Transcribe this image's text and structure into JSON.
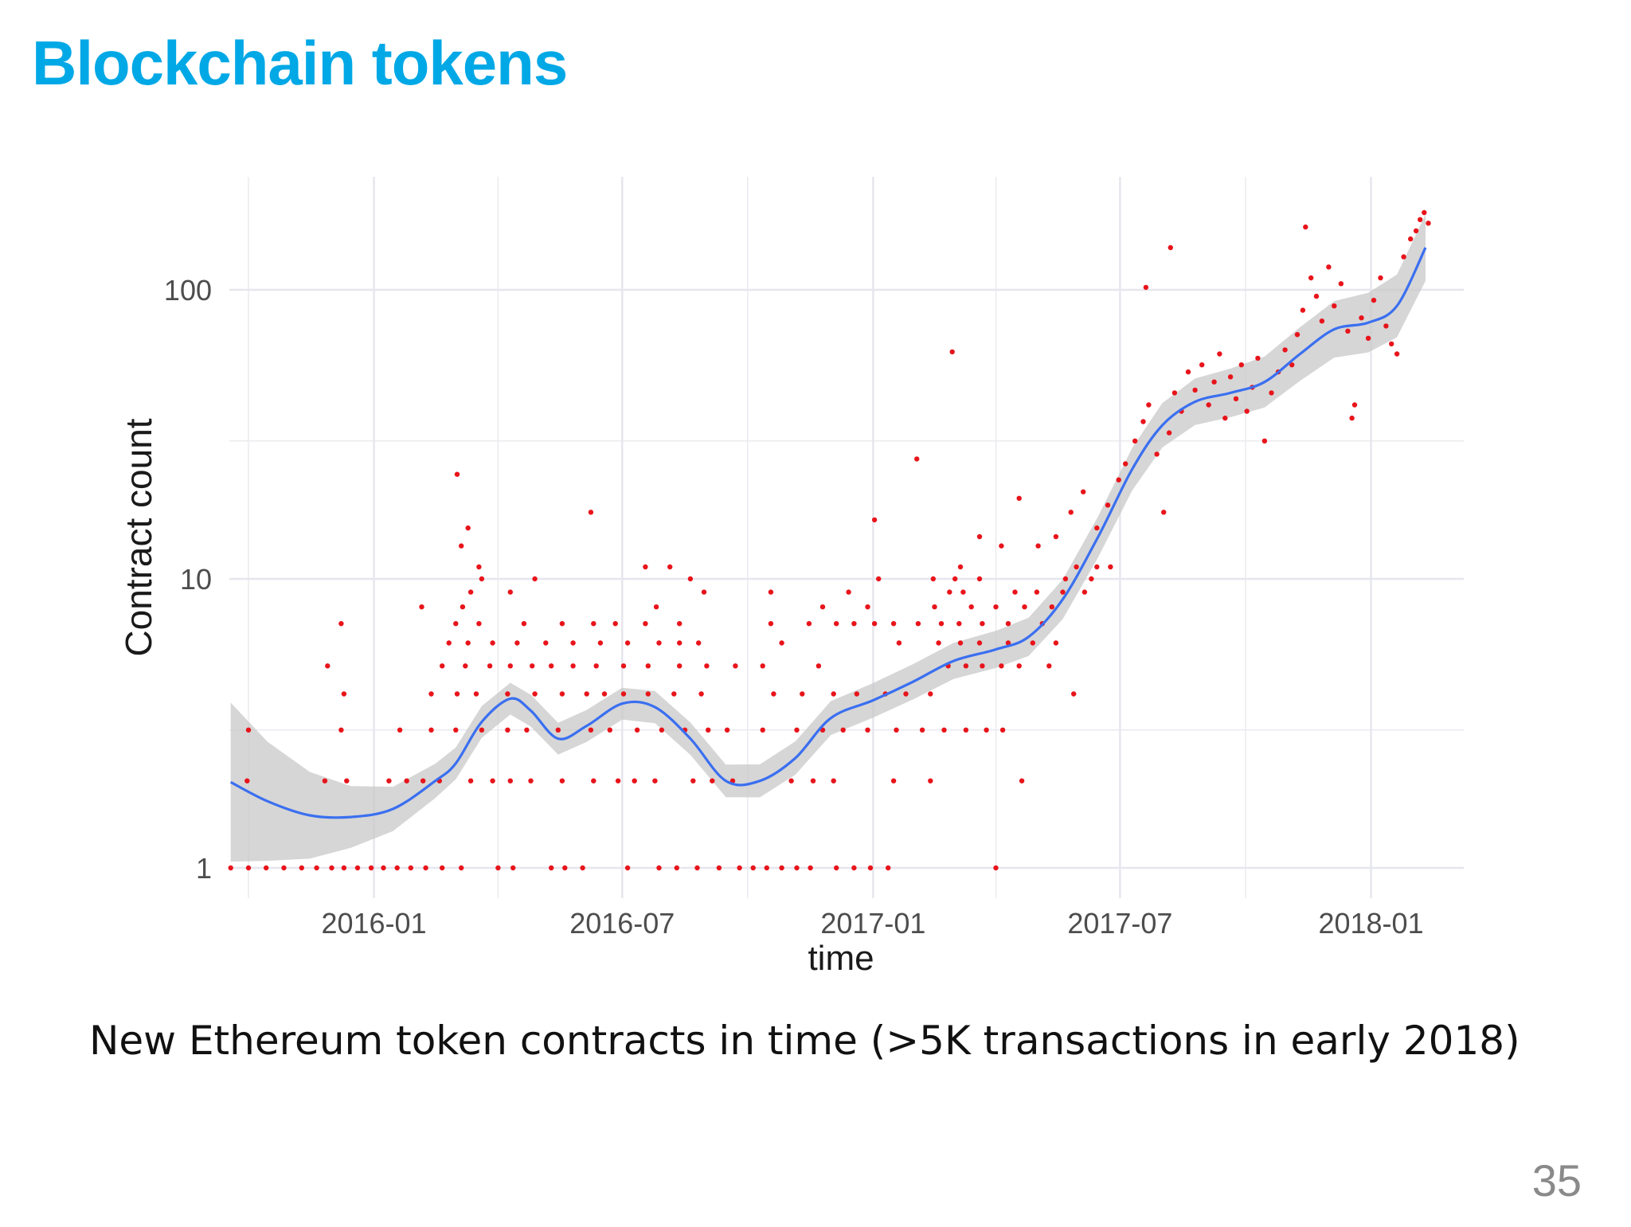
{
  "slide": {
    "title": "Blockchain tokens",
    "caption": "New Ethereum token contracts in time (>5K transactions in early 2018)",
    "page_number": "35"
  },
  "colors": {
    "title": "#00a8e6",
    "points": "#e8141b",
    "smooth_line": "#3a6ff0",
    "confidence_band": "#c8c8c8",
    "grid": "#ebebf0"
  },
  "chart_data": {
    "type": "scatter",
    "xlabel": "time",
    "ylabel": "Contract count",
    "yscale": "log10",
    "ylim": [
      1,
      180
    ],
    "xlim": [
      "2015-09-17",
      "2018-03-10"
    ],
    "xticks": [
      "2016-01",
      "2016-07",
      "2017-01",
      "2017-07",
      "2018-01"
    ],
    "yticks": [
      "1",
      "10",
      "100"
    ],
    "grid": true,
    "legend": "none",
    "points": [
      [
        "2015-09-18",
        1
      ],
      [
        "2015-10-01",
        1
      ],
      [
        "2015-10-14",
        1
      ],
      [
        "2015-10-27",
        1
      ],
      [
        "2015-11-09",
        1
      ],
      [
        "2015-11-20",
        1
      ],
      [
        "2015-12-01",
        1
      ],
      [
        "2015-12-10",
        1
      ],
      [
        "2015-12-20",
        1
      ],
      [
        "2015-12-30",
        1
      ],
      [
        "2016-01-08",
        1
      ],
      [
        "2016-01-18",
        1
      ],
      [
        "2016-01-28",
        1
      ],
      [
        "2016-02-08",
        1
      ],
      [
        "2016-02-20",
        1
      ],
      [
        "2016-03-05",
        1
      ],
      [
        "2016-04-01",
        1
      ],
      [
        "2016-04-12",
        1
      ],
      [
        "2016-05-10",
        1
      ],
      [
        "2016-05-20",
        1
      ],
      [
        "2016-06-02",
        1
      ],
      [
        "2016-07-05",
        1
      ],
      [
        "2016-07-28",
        1
      ],
      [
        "2016-08-10",
        1
      ],
      [
        "2016-08-25",
        1
      ],
      [
        "2016-09-10",
        1
      ],
      [
        "2016-09-25",
        1
      ],
      [
        "2016-10-05",
        1
      ],
      [
        "2016-10-15",
        1
      ],
      [
        "2016-10-26",
        1
      ],
      [
        "2016-11-06",
        1
      ],
      [
        "2016-11-16",
        1
      ],
      [
        "2016-12-05",
        1
      ],
      [
        "2016-12-18",
        1
      ],
      [
        "2016-12-30",
        1
      ],
      [
        "2017-01-12",
        1
      ],
      [
        "2017-04-01",
        1
      ],
      [
        "2015-09-30",
        2
      ],
      [
        "2015-11-26",
        2
      ],
      [
        "2015-12-12",
        2
      ],
      [
        "2016-01-12",
        2
      ],
      [
        "2016-01-25",
        2
      ],
      [
        "2016-02-06",
        2
      ],
      [
        "2016-02-18",
        2
      ],
      [
        "2016-03-12",
        2
      ],
      [
        "2016-03-28",
        2
      ],
      [
        "2016-04-10",
        2
      ],
      [
        "2016-04-25",
        2
      ],
      [
        "2016-05-18",
        2
      ],
      [
        "2016-06-10",
        2
      ],
      [
        "2016-06-28",
        2
      ],
      [
        "2016-07-10",
        2
      ],
      [
        "2016-07-25",
        2
      ],
      [
        "2016-08-22",
        2
      ],
      [
        "2016-09-05",
        2
      ],
      [
        "2016-09-20",
        2
      ],
      [
        "2016-11-02",
        2
      ],
      [
        "2016-11-18",
        2
      ],
      [
        "2016-12-03",
        2
      ],
      [
        "2017-01-16",
        2
      ],
      [
        "2017-02-12",
        2
      ],
      [
        "2017-04-20",
        2
      ],
      [
        "2015-10-01",
        3
      ],
      [
        "2015-12-08",
        3
      ],
      [
        "2016-01-20",
        3
      ],
      [
        "2016-02-12",
        3
      ],
      [
        "2016-03-01",
        3
      ],
      [
        "2016-03-20",
        3
      ],
      [
        "2016-04-08",
        3
      ],
      [
        "2016-04-22",
        3
      ],
      [
        "2016-05-15",
        3
      ],
      [
        "2016-06-08",
        3
      ],
      [
        "2016-06-22",
        3
      ],
      [
        "2016-07-12",
        3
      ],
      [
        "2016-07-30",
        3
      ],
      [
        "2016-08-16",
        3
      ],
      [
        "2016-09-02",
        3
      ],
      [
        "2016-09-16",
        3
      ],
      [
        "2016-10-12",
        3
      ],
      [
        "2016-11-06",
        3
      ],
      [
        "2016-11-25",
        3
      ],
      [
        "2016-12-10",
        3
      ],
      [
        "2016-12-28",
        3
      ],
      [
        "2017-01-18",
        3
      ],
      [
        "2017-02-06",
        3
      ],
      [
        "2017-02-22",
        3
      ],
      [
        "2017-03-10",
        3
      ],
      [
        "2017-03-25",
        3
      ],
      [
        "2017-04-06",
        3
      ],
      [
        "2015-12-10",
        4
      ],
      [
        "2016-02-12",
        4
      ],
      [
        "2016-03-02",
        4
      ],
      [
        "2016-03-16",
        4
      ],
      [
        "2016-04-08",
        4
      ],
      [
        "2016-04-28",
        4
      ],
      [
        "2016-05-18",
        4
      ],
      [
        "2016-06-05",
        4
      ],
      [
        "2016-06-18",
        4
      ],
      [
        "2016-07-02",
        4
      ],
      [
        "2016-07-20",
        4
      ],
      [
        "2016-08-08",
        4
      ],
      [
        "2016-08-28",
        4
      ],
      [
        "2016-10-20",
        4
      ],
      [
        "2016-11-10",
        4
      ],
      [
        "2016-12-03",
        4
      ],
      [
        "2016-12-20",
        4
      ],
      [
        "2017-01-10",
        4
      ],
      [
        "2017-01-25",
        4
      ],
      [
        "2017-02-12",
        4
      ],
      [
        "2017-05-28",
        4
      ],
      [
        "2015-11-28",
        5
      ],
      [
        "2016-02-20",
        5
      ],
      [
        "2016-03-08",
        5
      ],
      [
        "2016-03-26",
        5
      ],
      [
        "2016-04-10",
        5
      ],
      [
        "2016-04-26",
        5
      ],
      [
        "2016-05-10",
        5
      ],
      [
        "2016-05-26",
        5
      ],
      [
        "2016-06-12",
        5
      ],
      [
        "2016-07-02",
        5
      ],
      [
        "2016-07-20",
        5
      ],
      [
        "2016-08-12",
        5
      ],
      [
        "2016-09-01",
        5
      ],
      [
        "2016-09-22",
        5
      ],
      [
        "2016-10-12",
        5
      ],
      [
        "2016-11-22",
        5
      ],
      [
        "2017-02-25",
        5
      ],
      [
        "2017-03-10",
        5
      ],
      [
        "2017-03-22",
        5
      ],
      [
        "2017-04-05",
        5
      ],
      [
        "2017-04-18",
        5
      ],
      [
        "2017-05-10",
        5
      ],
      [
        "2016-02-25",
        6
      ],
      [
        "2016-03-10",
        6
      ],
      [
        "2016-03-28",
        6
      ],
      [
        "2016-04-15",
        6
      ],
      [
        "2016-05-06",
        6
      ],
      [
        "2016-05-26",
        6
      ],
      [
        "2016-06-15",
        6
      ],
      [
        "2016-07-05",
        6
      ],
      [
        "2016-07-28",
        6
      ],
      [
        "2016-08-12",
        6
      ],
      [
        "2016-08-26",
        6
      ],
      [
        "2016-10-26",
        6
      ],
      [
        "2017-01-20",
        6
      ],
      [
        "2017-02-18",
        6
      ],
      [
        "2017-03-06",
        6
      ],
      [
        "2017-03-20",
        6
      ],
      [
        "2017-04-10",
        6
      ],
      [
        "2017-04-28",
        6
      ],
      [
        "2017-05-15",
        6
      ],
      [
        "2015-12-08",
        7
      ],
      [
        "2016-03-01",
        7
      ],
      [
        "2016-03-18",
        7
      ],
      [
        "2016-04-20",
        7
      ],
      [
        "2016-05-18",
        7
      ],
      [
        "2016-06-10",
        7
      ],
      [
        "2016-06-26",
        7
      ],
      [
        "2016-07-18",
        7
      ],
      [
        "2016-08-12",
        7
      ],
      [
        "2016-10-18",
        7
      ],
      [
        "2016-11-15",
        7
      ],
      [
        "2016-12-05",
        7
      ],
      [
        "2016-12-18",
        7
      ],
      [
        "2017-01-02",
        7
      ],
      [
        "2017-01-16",
        7
      ],
      [
        "2017-02-03",
        7
      ],
      [
        "2017-02-20",
        7
      ],
      [
        "2017-03-05",
        7
      ],
      [
        "2017-03-22",
        7
      ],
      [
        "2017-04-10",
        7
      ],
      [
        "2017-05-05",
        7
      ],
      [
        "2016-02-05",
        8
      ],
      [
        "2016-03-06",
        8
      ],
      [
        "2016-07-26",
        8
      ],
      [
        "2016-11-25",
        8
      ],
      [
        "2016-12-28",
        8
      ],
      [
        "2017-02-15",
        8
      ],
      [
        "2017-03-14",
        8
      ],
      [
        "2017-04-01",
        8
      ],
      [
        "2017-04-22",
        8
      ],
      [
        "2017-05-12",
        8
      ],
      [
        "2016-03-12",
        9
      ],
      [
        "2016-04-10",
        9
      ],
      [
        "2016-08-30",
        9
      ],
      [
        "2016-10-18",
        9
      ],
      [
        "2016-12-14",
        9
      ],
      [
        "2017-02-26",
        9
      ],
      [
        "2017-03-08",
        9
      ],
      [
        "2017-04-15",
        9
      ],
      [
        "2017-05-01",
        9
      ],
      [
        "2017-05-20",
        9
      ],
      [
        "2017-06-05",
        9
      ],
      [
        "2016-03-20",
        10
      ],
      [
        "2016-04-28",
        10
      ],
      [
        "2016-08-20",
        10
      ],
      [
        "2017-01-05",
        10
      ],
      [
        "2017-02-14",
        10
      ],
      [
        "2017-03-02",
        10
      ],
      [
        "2017-03-20",
        10
      ],
      [
        "2017-05-22",
        10
      ],
      [
        "2017-06-10",
        10
      ],
      [
        "2016-03-18",
        11
      ],
      [
        "2016-07-18",
        11
      ],
      [
        "2016-08-05",
        11
      ],
      [
        "2017-03-06",
        11
      ],
      [
        "2017-05-30",
        11
      ],
      [
        "2017-06-14",
        11
      ],
      [
        "2017-06-24",
        11
      ],
      [
        "2016-03-05",
        13
      ],
      [
        "2016-03-10",
        15
      ],
      [
        "2016-06-08",
        17
      ],
      [
        "2016-03-02",
        23
      ],
      [
        "2017-01-02",
        16
      ],
      [
        "2017-02-02",
        26
      ],
      [
        "2017-03-20",
        14
      ],
      [
        "2017-04-05",
        13
      ],
      [
        "2017-04-18",
        19
      ],
      [
        "2017-05-02",
        13
      ],
      [
        "2017-05-15",
        14
      ],
      [
        "2017-05-26",
        17
      ],
      [
        "2017-06-04",
        20
      ],
      [
        "2017-06-14",
        15
      ],
      [
        "2017-06-22",
        18
      ],
      [
        "2017-06-30",
        22
      ],
      [
        "2017-07-05",
        25
      ],
      [
        "2017-07-12",
        30
      ],
      [
        "2017-07-18",
        35
      ],
      [
        "2017-07-22",
        40
      ],
      [
        "2017-07-28",
        27
      ],
      [
        "2017-08-02",
        17
      ],
      [
        "2017-08-06",
        32
      ],
      [
        "2017-08-10",
        44
      ],
      [
        "2017-08-15",
        38
      ],
      [
        "2017-08-20",
        52
      ],
      [
        "2017-08-25",
        45
      ],
      [
        "2017-08-30",
        55
      ],
      [
        "2017-09-04",
        40
      ],
      [
        "2017-09-08",
        48
      ],
      [
        "2017-09-12",
        60
      ],
      [
        "2017-09-16",
        36
      ],
      [
        "2017-09-20",
        50
      ],
      [
        "2017-09-24",
        42
      ],
      [
        "2017-09-28",
        55
      ],
      [
        "2017-10-02",
        38
      ],
      [
        "2017-10-06",
        46
      ],
      [
        "2017-10-10",
        58
      ],
      [
        "2017-10-15",
        30
      ],
      [
        "2017-10-20",
        44
      ],
      [
        "2017-10-25",
        52
      ],
      [
        "2017-10-30",
        62
      ],
      [
        "2017-11-04",
        55
      ],
      [
        "2017-11-08",
        70
      ],
      [
        "2017-11-12",
        85
      ],
      [
        "2017-11-14",
        165
      ],
      [
        "2017-11-18",
        110
      ],
      [
        "2017-11-22",
        95
      ],
      [
        "2017-11-26",
        78
      ],
      [
        "2017-12-01",
        120
      ],
      [
        "2017-12-05",
        88
      ],
      [
        "2017-12-10",
        105
      ],
      [
        "2017-12-15",
        72
      ],
      [
        "2017-12-18",
        36
      ],
      [
        "2017-12-20",
        40
      ],
      [
        "2017-12-25",
        80
      ],
      [
        "2017-12-30",
        68
      ],
      [
        "2018-01-03",
        92
      ],
      [
        "2018-01-08",
        110
      ],
      [
        "2018-01-12",
        75
      ],
      [
        "2018-01-16",
        65
      ],
      [
        "2018-01-20",
        60
      ],
      [
        "2018-01-25",
        130
      ],
      [
        "2018-01-30",
        150
      ],
      [
        "2018-02-03",
        160
      ],
      [
        "2018-02-06",
        175
      ],
      [
        "2018-02-09",
        185
      ],
      [
        "2018-02-12",
        170
      ],
      [
        "2017-02-28",
        61
      ],
      [
        "2017-07-20",
        102
      ],
      [
        "2017-08-07",
        140
      ]
    ],
    "smooth_curve": [
      [
        "2015-09-18",
        1.98
      ],
      [
        "2015-10-15",
        1.7
      ],
      [
        "2015-11-15",
        1.52
      ],
      [
        "2015-12-15",
        1.5
      ],
      [
        "2016-01-15",
        1.6
      ],
      [
        "2016-02-15",
        2.0
      ],
      [
        "2016-03-01",
        2.3
      ],
      [
        "2016-03-20",
        3.2
      ],
      [
        "2016-04-10",
        3.85
      ],
      [
        "2016-04-25",
        3.5
      ],
      [
        "2016-05-15",
        2.8
      ],
      [
        "2016-06-05",
        3.1
      ],
      [
        "2016-07-01",
        3.7
      ],
      [
        "2016-07-25",
        3.6
      ],
      [
        "2016-08-20",
        2.8
      ],
      [
        "2016-09-15",
        2.0
      ],
      [
        "2016-10-10",
        2.0
      ],
      [
        "2016-11-05",
        2.4
      ],
      [
        "2016-12-01",
        3.3
      ],
      [
        "2017-01-01",
        3.8
      ],
      [
        "2017-01-30",
        4.4
      ],
      [
        "2017-03-01",
        5.2
      ],
      [
        "2017-04-01",
        5.7
      ],
      [
        "2017-04-25",
        6.3
      ],
      [
        "2017-05-20",
        8.5
      ],
      [
        "2017-06-15",
        14
      ],
      [
        "2017-07-10",
        24
      ],
      [
        "2017-08-01",
        34
      ],
      [
        "2017-08-25",
        41
      ],
      [
        "2017-09-20",
        44
      ],
      [
        "2017-10-15",
        48
      ],
      [
        "2017-11-10",
        60
      ],
      [
        "2017-12-05",
        73
      ],
      [
        "2017-12-30",
        77
      ],
      [
        "2018-01-20",
        88
      ],
      [
        "2018-02-10",
        140
      ]
    ]
  }
}
